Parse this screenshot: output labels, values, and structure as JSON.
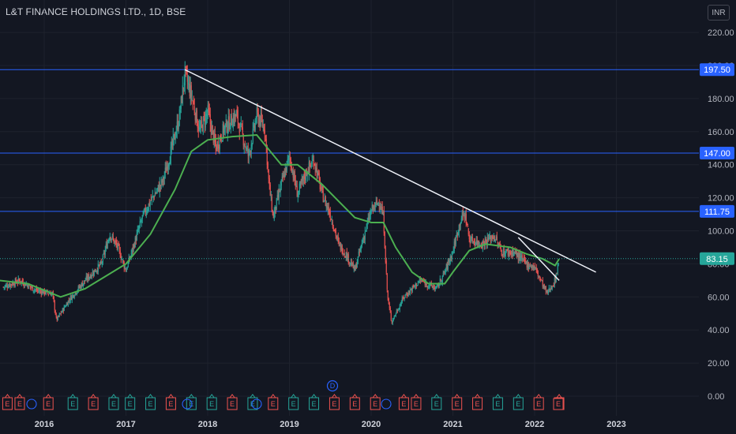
{
  "header": {
    "symbol": "L&T FINANCE HOLDINGS LTD., 1D, BSE"
  },
  "currency": "INR",
  "chart_data": {
    "type": "candlestick",
    "ylim": [
      0,
      230
    ],
    "y_ticks": [
      0,
      20,
      40,
      60,
      80,
      100,
      120,
      140,
      160,
      180,
      200,
      220
    ],
    "y_tick_labels": [
      "0.00",
      "20.00",
      "40.00",
      "60.00",
      "80.00",
      "100.00",
      "120.00",
      "140.00",
      "160.00",
      "180.00",
      "200.00",
      "220.00"
    ],
    "x_ticks": [
      "2016",
      "2017",
      "2018",
      "2019",
      "2020",
      "2021",
      "2022",
      "2023"
    ],
    "price_path": [
      [
        2015.5,
        66
      ],
      [
        2015.7,
        70
      ],
      [
        2015.9,
        64
      ],
      [
        2016.1,
        62
      ],
      [
        2016.15,
        46
      ],
      [
        2016.3,
        58
      ],
      [
        2016.5,
        70
      ],
      [
        2016.7,
        80
      ],
      [
        2016.8,
        98
      ],
      [
        2016.9,
        90
      ],
      [
        2017.0,
        76
      ],
      [
        2017.1,
        92
      ],
      [
        2017.2,
        108
      ],
      [
        2017.3,
        118
      ],
      [
        2017.45,
        130
      ],
      [
        2017.55,
        148
      ],
      [
        2017.65,
        168
      ],
      [
        2017.72,
        195
      ],
      [
        2017.8,
        182
      ],
      [
        2017.9,
        160
      ],
      [
        2018.0,
        172
      ],
      [
        2018.1,
        150
      ],
      [
        2018.2,
        162
      ],
      [
        2018.35,
        170
      ],
      [
        2018.5,
        145
      ],
      [
        2018.6,
        170
      ],
      [
        2018.7,
        162
      ],
      [
        2018.75,
        128
      ],
      [
        2018.8,
        108
      ],
      [
        2018.9,
        128
      ],
      [
        2019.0,
        145
      ],
      [
        2019.1,
        122
      ],
      [
        2019.2,
        135
      ],
      [
        2019.3,
        143
      ],
      [
        2019.4,
        122
      ],
      [
        2019.5,
        110
      ],
      [
        2019.6,
        92
      ],
      [
        2019.7,
        85
      ],
      [
        2019.8,
        76
      ],
      [
        2019.9,
        95
      ],
      [
        2020.0,
        112
      ],
      [
        2020.1,
        118
      ],
      [
        2020.15,
        108
      ],
      [
        2020.2,
        60
      ],
      [
        2020.25,
        45
      ],
      [
        2020.4,
        60
      ],
      [
        2020.6,
        70
      ],
      [
        2020.8,
        65
      ],
      [
        2020.9,
        75
      ],
      [
        2021.0,
        88
      ],
      [
        2021.1,
        108
      ],
      [
        2021.15,
        110
      ],
      [
        2021.2,
        95
      ],
      [
        2021.35,
        92
      ],
      [
        2021.5,
        97
      ],
      [
        2021.6,
        87
      ],
      [
        2021.75,
        87
      ],
      [
        2021.9,
        80
      ],
      [
        2022.0,
        78
      ],
      [
        2022.15,
        62
      ],
      [
        2022.25,
        70
      ],
      [
        2022.3,
        83.15
      ]
    ],
    "moving_average": [
      [
        2015.45,
        70
      ],
      [
        2015.8,
        68
      ],
      [
        2016.2,
        60
      ],
      [
        2016.5,
        65
      ],
      [
        2016.8,
        74
      ],
      [
        2017.0,
        80
      ],
      [
        2017.3,
        98
      ],
      [
        2017.6,
        125
      ],
      [
        2017.8,
        148
      ],
      [
        2018.0,
        155
      ],
      [
        2018.3,
        157
      ],
      [
        2018.6,
        158
      ],
      [
        2018.7,
        152
      ],
      [
        2018.9,
        140
      ],
      [
        2019.1,
        140
      ],
      [
        2019.4,
        128
      ],
      [
        2019.6,
        118
      ],
      [
        2019.8,
        108
      ],
      [
        2020.0,
        105
      ],
      [
        2020.15,
        105
      ],
      [
        2020.3,
        90
      ],
      [
        2020.5,
        75
      ],
      [
        2020.7,
        68
      ],
      [
        2020.9,
        68
      ],
      [
        2021.0,
        75
      ],
      [
        2021.2,
        88
      ],
      [
        2021.4,
        92
      ],
      [
        2021.7,
        90
      ],
      [
        2021.9,
        86
      ],
      [
        2022.1,
        83
      ],
      [
        2022.25,
        79
      ],
      [
        2022.3,
        83
      ]
    ],
    "trend_lines": [
      {
        "from": [
          2017.72,
          197.5
        ],
        "to": [
          2022.75,
          75
        ]
      },
      {
        "from": [
          2021.8,
          96
        ],
        "to": [
          2022.3,
          70
        ]
      }
    ],
    "horizontal_levels": [
      197.5,
      147,
      111.75
    ],
    "level_labels": [
      "197.50",
      "147.00",
      "111.75"
    ],
    "last_price": 83.15,
    "last_price_label": "83.15",
    "events": [
      {
        "kind": "dividend",
        "label": "D",
        "x": 2019.55
      }
    ],
    "earnings_markers": [
      {
        "x": 2015.55,
        "c": "r"
      },
      {
        "x": 2015.7,
        "c": "r"
      },
      {
        "x": 2016.05,
        "c": "r"
      },
      {
        "x": 2016.35,
        "c": "g"
      },
      {
        "x": 2016.6,
        "c": "r"
      },
      {
        "x": 2016.85,
        "c": "g"
      },
      {
        "x": 2017.05,
        "c": "g"
      },
      {
        "x": 2017.3,
        "c": "g"
      },
      {
        "x": 2017.55,
        "c": "r"
      },
      {
        "x": 2017.8,
        "c": "g"
      },
      {
        "x": 2018.05,
        "c": "g"
      },
      {
        "x": 2018.3,
        "c": "r"
      },
      {
        "x": 2018.55,
        "c": "g"
      },
      {
        "x": 2018.8,
        "c": "r"
      },
      {
        "x": 2019.05,
        "c": "g"
      },
      {
        "x": 2019.3,
        "c": "g"
      },
      {
        "x": 2019.55,
        "c": "r"
      },
      {
        "x": 2019.8,
        "c": "r"
      },
      {
        "x": 2020.05,
        "c": "r"
      },
      {
        "x": 2020.4,
        "c": "r"
      },
      {
        "x": 2020.55,
        "c": "r"
      },
      {
        "x": 2020.8,
        "c": "g"
      },
      {
        "x": 2021.05,
        "c": "r"
      },
      {
        "x": 2021.3,
        "c": "r"
      },
      {
        "x": 2021.55,
        "c": "g"
      },
      {
        "x": 2021.8,
        "c": "g"
      },
      {
        "x": 2022.05,
        "c": "r"
      },
      {
        "x": 2022.3,
        "c": "r"
      }
    ],
    "earnings_label": "E"
  }
}
